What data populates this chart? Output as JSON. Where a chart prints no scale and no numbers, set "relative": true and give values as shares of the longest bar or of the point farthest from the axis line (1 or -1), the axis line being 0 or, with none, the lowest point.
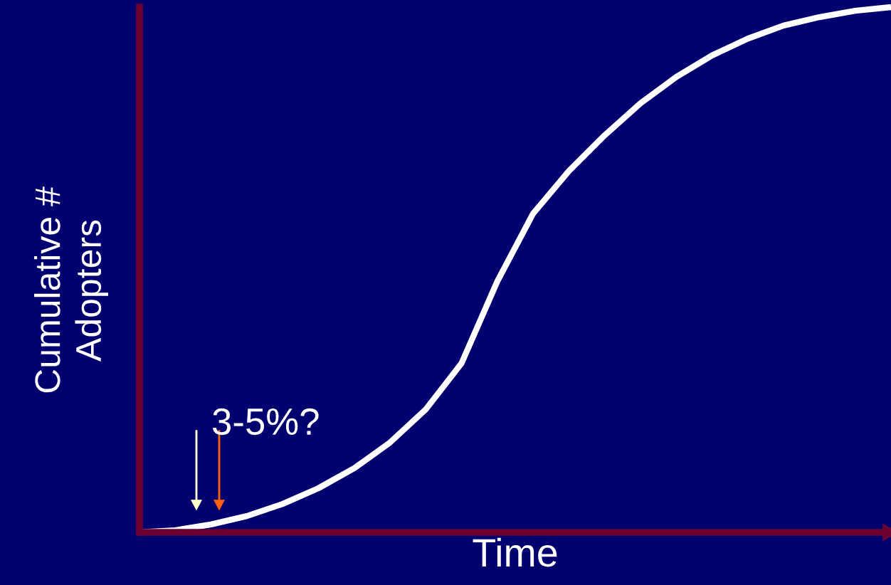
{
  "chart_data": {
    "type": "line",
    "relative": true,
    "xlabel": "Time",
    "ylabel": "Cumulative #\nAdopters",
    "categories": [
      null,
      null,
      null,
      null,
      null,
      null,
      null,
      null,
      null,
      null,
      null,
      null,
      null,
      null,
      null,
      null,
      null,
      null,
      null,
      null,
      null,
      null
    ],
    "series": [
      {
        "color": "#ffffff",
        "values": [
          0,
          0.004,
          0.015,
          0.031,
          0.054,
          0.084,
          0.122,
          0.171,
          0.234,
          0.322,
          0.478,
          0.607,
          0.688,
          0.756,
          0.817,
          0.867,
          0.908,
          0.94,
          0.965,
          0.981,
          0.993,
          1.0
        ]
      }
    ],
    "annotations": [
      "3-5%?"
    ],
    "legend": false,
    "grid": false,
    "marker": "none",
    "line_style": "solid"
  }
}
